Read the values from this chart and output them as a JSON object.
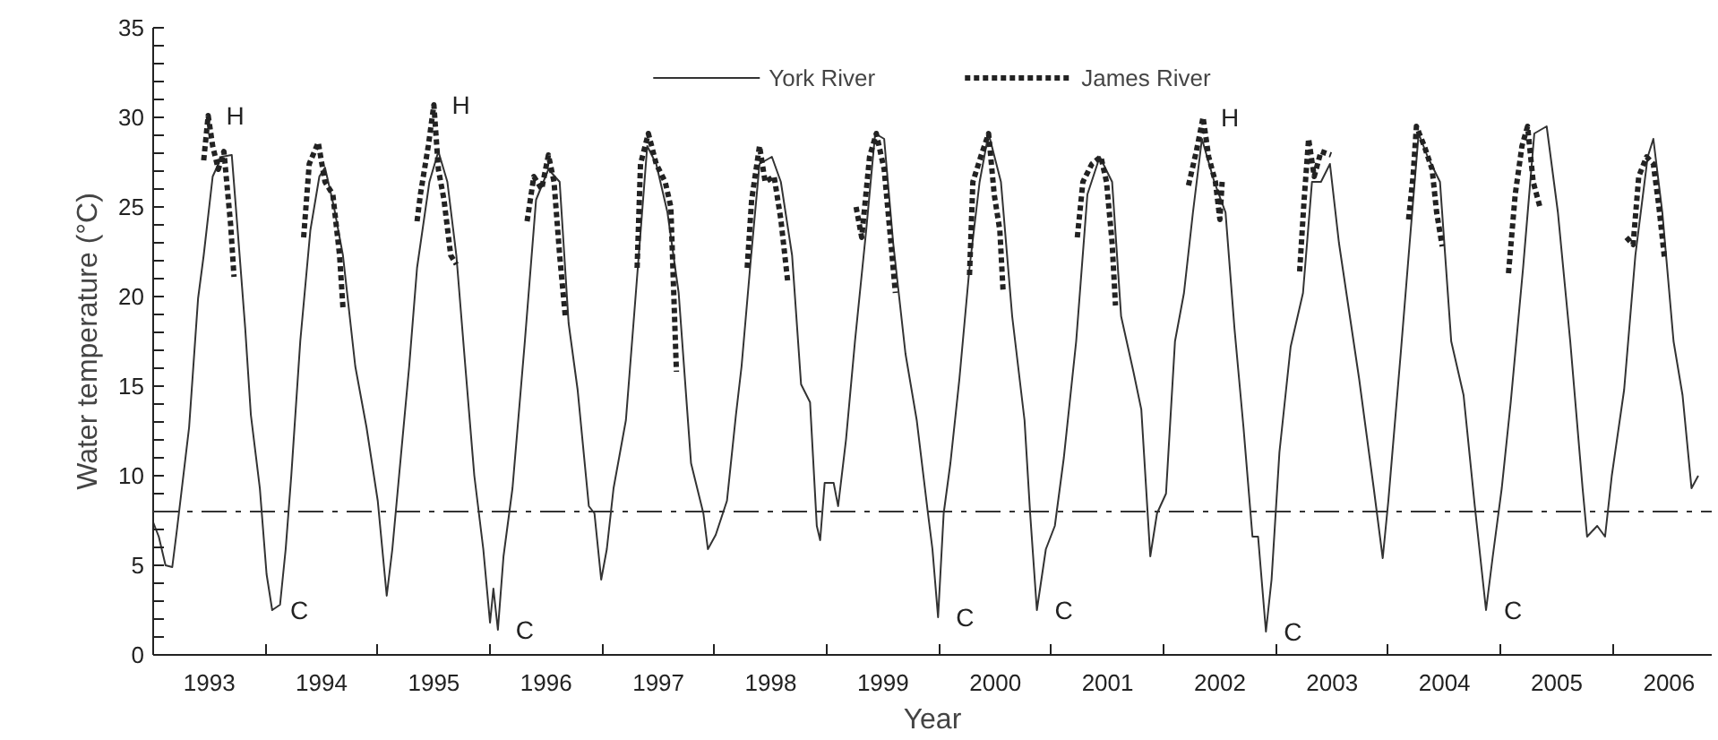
{
  "chart_data": {
    "type": "line",
    "xlabel": "Year",
    "ylabel": "Water temperature (°C)",
    "xlim": [
      1993.0,
      2006.88
    ],
    "ylim": [
      0,
      35
    ],
    "xticks": [
      {
        "value": 1993.5,
        "label": "1993"
      },
      {
        "value": 1994.5,
        "label": "1994"
      },
      {
        "value": 1995.5,
        "label": "1995"
      },
      {
        "value": 1996.5,
        "label": "1996"
      },
      {
        "value": 1997.5,
        "label": "1997"
      },
      {
        "value": 1998.5,
        "label": "1998"
      },
      {
        "value": 1999.5,
        "label": "1999"
      },
      {
        "value": 2000.5,
        "label": "2000"
      },
      {
        "value": 2001.5,
        "label": "2001"
      },
      {
        "value": 2002.5,
        "label": "2002"
      },
      {
        "value": 2003.5,
        "label": "2003"
      },
      {
        "value": 2004.5,
        "label": "2004"
      },
      {
        "value": 2005.5,
        "label": "2005"
      },
      {
        "value": 2006.5,
        "label": "2006"
      },
      {
        "value": 1994,
        "label": null
      },
      {
        "value": 1995,
        "label": null
      },
      {
        "value": 1996,
        "label": null
      },
      {
        "value": 1997,
        "label": null
      },
      {
        "value": 1998,
        "label": null
      },
      {
        "value": 1999,
        "label": null
      },
      {
        "value": 2000,
        "label": null
      },
      {
        "value": 2001,
        "label": null
      },
      {
        "value": 2002,
        "label": null
      },
      {
        "value": 2003,
        "label": null
      },
      {
        "value": 2004,
        "label": null
      },
      {
        "value": 2005,
        "label": null
      },
      {
        "value": 2006,
        "label": null
      }
    ],
    "yticks": [
      0,
      5,
      10,
      15,
      20,
      25,
      30,
      35,
      {
        "value": 1,
        "label": null
      },
      {
        "value": 2,
        "label": null
      },
      {
        "value": 3,
        "label": null
      },
      {
        "value": 4,
        "label": null
      },
      {
        "value": 6,
        "label": null
      },
      {
        "value": 7,
        "label": null
      },
      {
        "value": 8,
        "label": null
      },
      {
        "value": 9,
        "label": null
      },
      {
        "value": 11,
        "label": null
      },
      {
        "value": 12,
        "label": null
      },
      {
        "value": 13,
        "label": null
      },
      {
        "value": 14,
        "label": null
      },
      {
        "value": 16,
        "label": null
      },
      {
        "value": 17,
        "label": null
      },
      {
        "value": 18,
        "label": null
      },
      {
        "value": 19,
        "label": null
      },
      {
        "value": 21,
        "label": null
      },
      {
        "value": 22,
        "label": null
      },
      {
        "value": 23,
        "label": null
      },
      {
        "value": 24,
        "label": null
      },
      {
        "value": 26,
        "label": null
      },
      {
        "value": 27,
        "label": null
      },
      {
        "value": 28,
        "label": null
      },
      {
        "value": 29,
        "label": null
      },
      {
        "value": 31,
        "label": null
      },
      {
        "value": 32,
        "label": null
      },
      {
        "value": 33,
        "label": null
      },
      {
        "value": 34,
        "label": null
      }
    ],
    "grid": false,
    "legend": "top",
    "marker": "none",
    "series": [
      {
        "name": "York River",
        "color": "#333333",
        "line_style": "solid",
        "x": [
          1993.0,
          1993.05,
          1993.11,
          1993.17,
          1993.21,
          1993.25,
          1993.32,
          1993.4,
          1993.45,
          1993.53,
          1993.61,
          1993.7,
          1993.77,
          1993.82,
          1993.87,
          1993.95,
          1994.01,
          1994.06,
          1994.13,
          1994.18,
          1994.23,
          1994.31,
          1994.4,
          1994.48,
          1994.53,
          1994.61,
          1994.69,
          1994.8,
          1994.9,
          1995.0,
          1995.08,
          1995.13,
          1995.19,
          1995.28,
          1995.35,
          1995.46,
          1995.54,
          1995.62,
          1995.7,
          1995.78,
          1995.86,
          1995.94,
          1996.0,
          1996.03,
          1996.07,
          1996.12,
          1996.2,
          1996.31,
          1996.41,
          1996.52,
          1996.62,
          1996.7,
          1996.78,
          1996.88,
          1996.93,
          1996.99,
          1997.04,
          1997.1,
          1997.21,
          1997.29,
          1997.4,
          1997.48,
          1997.58,
          1997.68,
          1997.79,
          1997.9,
          1997.94,
          1998.01,
          1998.11,
          1998.19,
          1998.24,
          1998.32,
          1998.4,
          1998.51,
          1998.59,
          1998.69,
          1998.77,
          1998.85,
          1998.91,
          1998.94,
          1998.98,
          1999.06,
          1999.1,
          1999.17,
          1999.25,
          1999.35,
          1999.43,
          1999.51,
          1999.59,
          1999.7,
          1999.8,
          1999.9,
          1999.94,
          1999.99,
          2000.04,
          2000.1,
          2000.18,
          2000.27,
          2000.36,
          2000.44,
          2000.55,
          2000.65,
          2000.76,
          2000.81,
          2000.87,
          2000.95,
          2001.03,
          2001.11,
          2001.22,
          2001.32,
          2001.43,
          2001.54,
          2001.62,
          2001.73,
          2001.8,
          2001.88,
          2001.94,
          2002.02,
          2002.1,
          2002.18,
          2002.26,
          2002.34,
          2002.45,
          2002.55,
          2002.63,
          2002.71,
          2002.79,
          2002.84,
          2002.91,
          2002.96,
          2003.03,
          2003.13,
          2003.24,
          2003.32,
          2003.4,
          2003.48,
          2003.56,
          2003.74,
          2003.87,
          2003.95,
          2004.0,
          2004.11,
          2004.19,
          2004.27,
          2004.35,
          2004.46,
          2004.56,
          2004.67,
          2004.77,
          2004.87,
          2004.93,
          2005.01,
          2005.09,
          2005.2,
          2005.3,
          2005.41,
          2005.51,
          2005.62,
          2005.73,
          2005.77,
          2005.86,
          2005.93,
          2005.99,
          2006.1,
          2006.2,
          2006.31,
          2006.36,
          2006.44,
          2006.54,
          2006.62,
          2006.7,
          2006.76
        ],
        "values": [
          7.4,
          6.6,
          5.0,
          4.9,
          6.9,
          9.0,
          12.7,
          19.9,
          22.3,
          26.7,
          27.8,
          27.9,
          22.3,
          18.2,
          13.4,
          9.3,
          4.5,
          2.5,
          2.8,
          5.9,
          10.0,
          17.5,
          23.7,
          26.7,
          27.2,
          25.0,
          22.3,
          16.1,
          12.7,
          8.6,
          3.3,
          5.9,
          10.0,
          16.1,
          21.6,
          26.4,
          28.1,
          26.4,
          22.3,
          16.1,
          10.0,
          5.9,
          1.8,
          3.7,
          1.4,
          5.5,
          9.3,
          17.5,
          25.4,
          27.1,
          26.4,
          18.5,
          14.8,
          8.3,
          7.9,
          4.2,
          5.9,
          9.3,
          13.1,
          19.5,
          28.4,
          27.4,
          24.7,
          20.2,
          10.7,
          7.9,
          5.9,
          6.7,
          8.6,
          13.4,
          16.1,
          21.9,
          27.4,
          27.8,
          26.4,
          22.3,
          15.1,
          14.1,
          7.2,
          6.4,
          9.6,
          9.6,
          8.3,
          12.0,
          17.5,
          23.7,
          29.1,
          28.8,
          23.0,
          16.8,
          13.1,
          7.9,
          5.9,
          2.1,
          7.9,
          10.7,
          15.4,
          21.6,
          26.4,
          29.1,
          26.4,
          18.9,
          13.1,
          7.9,
          2.5,
          5.9,
          7.2,
          11.0,
          17.5,
          25.7,
          27.8,
          26.4,
          18.9,
          15.8,
          13.7,
          5.5,
          7.9,
          9.0,
          17.5,
          20.2,
          24.7,
          28.8,
          26.4,
          24.7,
          18.2,
          12.7,
          6.6,
          6.6,
          1.3,
          4.2,
          11.3,
          17.2,
          20.2,
          26.4,
          26.4,
          27.4,
          23.0,
          15.4,
          9.3,
          5.4,
          8.6,
          16.8,
          23.0,
          29.1,
          27.8,
          26.4,
          17.5,
          14.5,
          8.3,
          2.5,
          5.5,
          9.3,
          14.1,
          21.6,
          29.1,
          29.5,
          24.7,
          17.5,
          9.3,
          6.6,
          7.2,
          6.6,
          10.0,
          14.8,
          22.3,
          27.8,
          28.8,
          24.7,
          17.5,
          14.5,
          9.3,
          10.0
        ]
      },
      {
        "name": "James River",
        "color": "#222222",
        "line_style": "dotted",
        "x": [
          1993.45,
          1993.49,
          1993.53,
          1993.58,
          1993.63,
          1993.69,
          1993.72,
          1993.8,
          1994.34,
          1994.39,
          1994.47,
          1994.53,
          1994.6,
          1994.66,
          1994.69,
          1994.8,
          1995.35,
          1995.38,
          1995.45,
          1995.5,
          1995.54,
          1995.59,
          1995.65,
          1995.7,
          1995.8,
          1996.33,
          1996.39,
          1996.46,
          1996.52,
          1996.57,
          1996.62,
          1996.67,
          1996.8,
          1997.31,
          1997.34,
          1997.41,
          1997.48,
          1997.56,
          1997.61,
          1997.66,
          1997.8,
          1998.29,
          1998.33,
          1998.4,
          1998.45,
          1998.53,
          1998.59,
          1998.65,
          1998.8,
          1999.26,
          1999.31,
          1999.38,
          1999.44,
          1999.51,
          1999.56,
          1999.61,
          1999.8,
          2000.27,
          2000.3,
          2000.37,
          2000.44,
          2000.49,
          2000.54,
          2000.57,
          2000.8,
          2001.23,
          2001.28,
          2001.36,
          2001.44,
          2001.49,
          2001.54,
          2001.57,
          2001.8,
          2002.22,
          2002.29,
          2002.35,
          2002.4,
          2002.46,
          2002.5,
          2002.52,
          2002.8,
          2003.21,
          2003.25,
          2003.29,
          2003.34,
          2003.4,
          2003.49,
          2003.8,
          2004.18,
          2004.22,
          2004.25,
          2004.32,
          2004.39,
          2004.43,
          2004.48,
          2004.8,
          2005.07,
          2005.13,
          2005.19,
          2005.24,
          2005.29,
          2005.35,
          2005.8,
          2006.12,
          2006.18,
          2006.23,
          2006.3,
          2006.36,
          2006.41,
          2006.46
        ],
        "values": [
          27.6,
          30.1,
          28.4,
          27.1,
          28.1,
          24.0,
          21.1,
          null,
          23.3,
          27.4,
          28.6,
          26.4,
          25.7,
          22.3,
          19.4,
          null,
          24.2,
          25.7,
          28.4,
          30.7,
          27.1,
          25.4,
          22.3,
          21.8,
          null,
          24.2,
          26.7,
          26.0,
          27.9,
          26.4,
          22.3,
          18.9,
          null,
          21.6,
          27.4,
          29.1,
          27.4,
          26.4,
          25.0,
          15.8,
          null,
          21.6,
          25.4,
          28.4,
          26.4,
          26.7,
          24.3,
          20.9,
          null,
          25.0,
          23.3,
          27.8,
          29.1,
          27.1,
          23.7,
          20.2,
          null,
          21.2,
          26.4,
          27.8,
          29.1,
          25.7,
          23.7,
          20.2,
          null,
          23.3,
          26.4,
          27.4,
          27.8,
          26.4,
          23.0,
          19.5,
          null,
          26.2,
          28.1,
          30.0,
          27.8,
          26.4,
          24.3,
          26.4,
          null,
          21.4,
          25.4,
          28.8,
          26.7,
          28.1,
          27.9,
          null,
          24.3,
          26.7,
          29.5,
          28.4,
          27.1,
          24.7,
          22.8,
          null,
          21.3,
          25.7,
          28.4,
          29.5,
          26.4,
          25.0,
          null,
          23.3,
          22.9,
          26.7,
          27.8,
          27.4,
          25.0,
          22.1
        ]
      }
    ],
    "ref_lines": [
      {
        "axis": "y",
        "value": 8,
        "color": "#333333",
        "line_style": "dashdot"
      }
    ],
    "annotations": [
      {
        "text": "H",
        "x": 1993.49,
        "y": 30.1
      },
      {
        "text": "H",
        "x": 1995.5,
        "y": 30.7
      },
      {
        "text": "H",
        "x": 2002.35,
        "y": 30.0
      },
      {
        "text": "C",
        "x": 1994.06,
        "y": 2.5
      },
      {
        "text": "C",
        "x": 1996.07,
        "y": 1.4
      },
      {
        "text": "C",
        "x": 1999.99,
        "y": 2.1
      },
      {
        "text": "C",
        "x": 2000.87,
        "y": 2.5
      },
      {
        "text": "C",
        "x": 2002.91,
        "y": 1.3
      },
      {
        "text": "C",
        "x": 2004.87,
        "y": 2.5
      }
    ]
  }
}
